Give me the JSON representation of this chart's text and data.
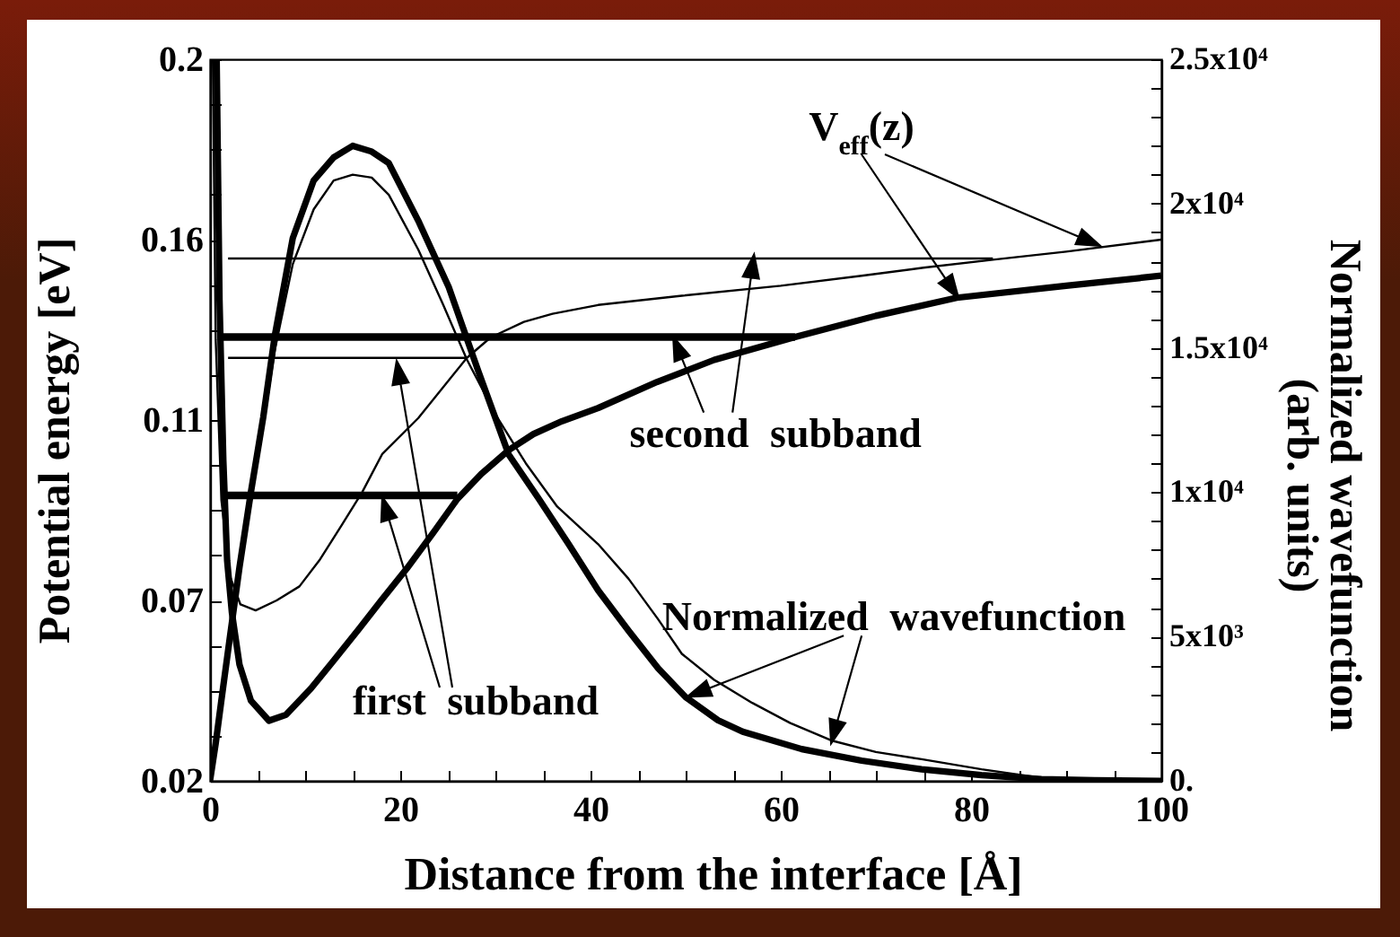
{
  "chart_data": {
    "type": "line",
    "xlabel": "Distance from the interface [Å]",
    "ylabel": "Potential energy [eV]",
    "y2label": "Normalized wavefunction\n(arb. units)",
    "xlim": [
      0,
      100
    ],
    "xticks": [
      0,
      {
        "value": 5,
        "label": null
      },
      {
        "value": 10,
        "label": null
      },
      {
        "value": 15,
        "label": null
      },
      20,
      {
        "value": 25,
        "label": null
      },
      {
        "value": 30,
        "label": null
      },
      {
        "value": 35,
        "label": null
      },
      40,
      {
        "value": 45,
        "label": null
      },
      {
        "value": 50,
        "label": null
      },
      {
        "value": 55,
        "label": null
      },
      60,
      {
        "value": 65,
        "label": null
      },
      {
        "value": 70,
        "label": null
      },
      {
        "value": 75,
        "label": null
      },
      80,
      {
        "value": 85,
        "label": null
      },
      {
        "value": 90,
        "label": null
      },
      {
        "value": 95,
        "label": null
      },
      100
    ],
    "ylim": [
      0.02,
      0.2
    ],
    "yticks": [
      0.02,
      {
        "value": 0.03125,
        "label": null
      },
      {
        "value": 0.0425,
        "label": null
      },
      {
        "value": 0.05375,
        "label": null
      },
      {
        "value": 0.065,
        "label": "0.07"
      },
      {
        "value": 0.07625,
        "label": null
      },
      {
        "value": 0.0875,
        "label": null
      },
      {
        "value": 0.09875,
        "label": null
      },
      0.11,
      {
        "value": 0.12125,
        "label": null
      },
      {
        "value": 0.1325,
        "label": null
      },
      {
        "value": 0.14375,
        "label": null
      },
      {
        "value": 0.155,
        "label": "0.16"
      },
      {
        "value": 0.16625,
        "label": null
      },
      {
        "value": 0.1775,
        "label": null
      },
      {
        "value": 0.18875,
        "label": null
      },
      0.2
    ],
    "y2lim": [
      0,
      25000
    ],
    "y2ticks": [
      {
        "value": 0,
        "label": "0."
      },
      {
        "value": 1000,
        "label": null
      },
      {
        "value": 2000,
        "label": null
      },
      {
        "value": 3000,
        "label": null
      },
      {
        "value": 4000,
        "label": null
      },
      {
        "value": 5000,
        "label": "5x10³"
      },
      {
        "value": 6000,
        "label": null
      },
      {
        "value": 7000,
        "label": null
      },
      {
        "value": 8000,
        "label": null
      },
      {
        "value": 9000,
        "label": null
      },
      {
        "value": 10000,
        "label": "1x10⁴"
      },
      {
        "value": 11000,
        "label": null
      },
      {
        "value": 12000,
        "label": null
      },
      {
        "value": 13000,
        "label": null
      },
      {
        "value": 14000,
        "label": null
      },
      {
        "value": 15000,
        "label": "1.5x10⁴"
      },
      {
        "value": 16000,
        "label": null
      },
      {
        "value": 17000,
        "label": null
      },
      {
        "value": 18000,
        "label": null
      },
      {
        "value": 19000,
        "label": null
      },
      {
        "value": 20000,
        "label": "2x10⁴"
      },
      {
        "value": 21000,
        "label": null
      },
      {
        "value": 22000,
        "label": null
      },
      {
        "value": 23000,
        "label": null
      },
      {
        "value": 24000,
        "label": null
      },
      {
        "value": 25000,
        "label": "2.5x10⁴"
      }
    ],
    "series": [
      {
        "color": "#000000",
        "x": [
          0.7,
          1.0,
          1.4,
          1.8,
          2.3,
          3.1,
          4.3,
          6.2,
          8.0,
          10.6,
          13.0,
          15.7,
          18.0,
          20.7,
          23.5,
          26.0,
          28.5,
          31.4,
          34.0,
          37.0,
          40.8,
          47.0,
          53.0,
          61.5,
          70.0,
          78.5,
          90.0,
          100
        ],
        "values": [
          0.2,
          0.14,
          0.1,
          0.075,
          0.062,
          0.049,
          0.04,
          0.035,
          0.0365,
          0.043,
          0.05,
          0.058,
          0.065,
          0.073,
          0.082,
          0.0903,
          0.0965,
          0.1025,
          0.1065,
          0.1097,
          0.113,
          0.1195,
          0.125,
          0.1307,
          0.136,
          0.1405,
          0.1435,
          0.146
        ]
      },
      {
        "color": "#000000",
        "x": [
          0.3,
          0.6,
          1.2,
          2.1,
          3.2,
          4.8,
          7.0,
          9.4,
          11.5,
          13.8,
          16.0,
          18.1,
          21.9,
          27.0,
          29.5,
          33.0,
          36.0,
          40.8,
          49.6,
          60.0,
          68.5,
          75.0,
          82.3,
          90.0,
          100
        ],
        "values": [
          0.2,
          0.13,
          0.09,
          0.071,
          0.064,
          0.0625,
          0.065,
          0.0685,
          0.075,
          0.0836,
          0.092,
          0.1015,
          0.1105,
          0.1255,
          0.1306,
          0.1345,
          0.1365,
          0.1387,
          0.141,
          0.1435,
          0.146,
          0.148,
          0.15,
          0.152,
          0.155
        ]
      },
      {
        "color": "#000000",
        "x": [
          1.5,
          26.0
        ],
        "values": [
          0.0912,
          0.0912
        ]
      },
      {
        "color": "#000000",
        "x": [
          1.3,
          61.5
        ],
        "values": [
          0.1307,
          0.1307
        ]
      },
      {
        "color": "#000000",
        "x": [
          1.9,
          27.0
        ],
        "values": [
          0.1255,
          0.1255
        ]
      },
      {
        "color": "#000000",
        "x": [
          1.9,
          82.3
        ],
        "values": [
          0.1503,
          0.1503
        ]
      },
      {
        "color": "#000000",
        "axis": "y2",
        "x": [
          0,
          0.6,
          1.2,
          2.1,
          3.1,
          4.3,
          5.6,
          6.8,
          8.7,
          10.9,
          13.0,
          15.0,
          17.0,
          18.8,
          21.9,
          25.1,
          28.2,
          31.4,
          34.5,
          37.7,
          40.8,
          44.0,
          47.1,
          50.0,
          53.4,
          56.0,
          62.2,
          68.5,
          74.8,
          81.1,
          87.4,
          93.0,
          100
        ],
        "values": [
          0,
          1300,
          2800,
          5000,
          7400,
          10000,
          12600,
          15400,
          18800,
          20800,
          21600,
          22000,
          21800,
          21400,
          19400,
          17100,
          14200,
          11300,
          9800,
          8200,
          6600,
          5200,
          3900,
          2900,
          2100,
          1700,
          1100,
          700,
          400,
          200,
          60,
          20,
          0
        ]
      },
      {
        "color": "#000000",
        "axis": "y2",
        "x": [
          0,
          1.2,
          2.1,
          3.1,
          4.3,
          5.6,
          6.8,
          8.7,
          10.9,
          13.0,
          15.0,
          17.0,
          18.8,
          21.9,
          24.5,
          27.0,
          30.0,
          33.2,
          36.5,
          40.8,
          44.0,
          47.1,
          49.6,
          53.0,
          57.0,
          61.0,
          65.3,
          70.0,
          74.8,
          81.1,
          87.4,
          93.7,
          100
        ],
        "values": [
          0,
          2700,
          4900,
          7300,
          9800,
          12300,
          14900,
          17900,
          19800,
          20800,
          21000,
          20900,
          20300,
          18400,
          16500,
          14600,
          12700,
          11000,
          9500,
          8200,
          7000,
          5600,
          4400,
          3500,
          2700,
          2000,
          1400,
          1000,
          750,
          400,
          100,
          30,
          0
        ]
      }
    ],
    "annotations": [
      "V$_{eff}$(z)",
      {
        "text": "second subband",
        "x": 48.7,
        "y": 0.1307
      },
      "first subband",
      {
        "text": "Normalized wavefunction",
        "x": 50.2,
        "y": 0.041
      }
    ]
  }
}
